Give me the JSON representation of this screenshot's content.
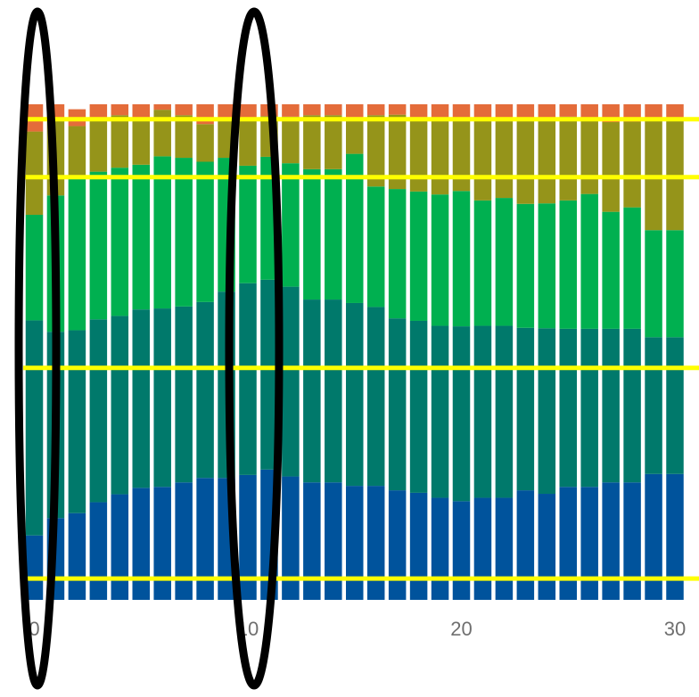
{
  "chart_data": {
    "type": "bar",
    "stacked": true,
    "normalized": true,
    "x": [
      0,
      1,
      2,
      3,
      4,
      5,
      6,
      7,
      8,
      9,
      10,
      11,
      12,
      13,
      14,
      15,
      16,
      17,
      18,
      19,
      20,
      21,
      22,
      23,
      24,
      25,
      26,
      27,
      28,
      29,
      30
    ],
    "x_ticks": [
      0,
      10,
      20,
      30
    ],
    "x_tick_labels": [
      "0",
      "10",
      "20",
      "30"
    ],
    "ylim": [
      0,
      100
    ],
    "series": [
      {
        "color": "#00539c",
        "values": [
          13.0,
          16.5,
          17.5,
          19.7,
          21.3,
          22.6,
          22.8,
          23.7,
          24.6,
          24.6,
          25.2,
          26.3,
          24.9,
          23.7,
          23.7,
          23.0,
          23.0,
          22.1,
          21.6,
          20.6,
          19.9,
          20.6,
          20.6,
          22.1,
          21.4,
          22.8,
          22.8,
          23.7,
          23.7,
          25.4,
          25.4
        ]
      },
      {
        "color": "#00796b",
        "values": [
          43.4,
          37.6,
          36.9,
          36.9,
          36.0,
          36.0,
          36.0,
          35.5,
          35.5,
          37.6,
          38.7,
          38.3,
          38.3,
          36.9,
          36.9,
          36.9,
          36.1,
          34.7,
          34.7,
          34.7,
          35.3,
          34.7,
          34.7,
          32.8,
          33.4,
          31.9,
          31.9,
          31.0,
          31.0,
          27.6,
          27.6
        ]
      },
      {
        "color": "#00b050",
        "values": [
          21.3,
          27.5,
          30.6,
          29.8,
          29.9,
          29.2,
          30.7,
          30.0,
          28.3,
          27.0,
          23.7,
          24.8,
          24.9,
          26.3,
          26.3,
          30.1,
          24.3,
          26.1,
          26.1,
          26.5,
          27.3,
          25.3,
          25.8,
          25.0,
          25.2,
          25.9,
          27.2,
          23.6,
          24.5,
          21.6,
          21.6
        ]
      },
      {
        "color": "#95941a",
        "values": [
          16.8,
          15.0,
          10.6,
          10.6,
          10.6,
          9.4,
          9.4,
          8.6,
          7.6,
          7.6,
          9.2,
          8.2,
          9.4,
          10.9,
          10.9,
          7.4,
          14.4,
          15.0,
          15.0,
          15.0,
          14.3,
          16.2,
          15.7,
          16.9,
          17.3,
          16.9,
          15.4,
          18.1,
          17.3,
          22.3,
          22.3
        ]
      },
      {
        "color": "#e46c3a",
        "values": [
          5.5,
          3.4,
          3.4,
          3.0,
          2.2,
          2.8,
          1.1,
          2.2,
          4.0,
          3.2,
          3.2,
          2.4,
          2.5,
          2.2,
          2.2,
          2.6,
          2.2,
          2.1,
          2.6,
          3.2,
          3.2,
          3.2,
          3.2,
          3.2,
          2.7,
          2.5,
          2.7,
          3.6,
          3.5,
          3.1,
          3.1
        ]
      }
    ]
  },
  "annotations": {
    "ellipse_color": "#000000",
    "highlight_line_color": "#ffff00",
    "highlight_y_values": [
      97.0,
      85.3,
      46.8,
      4.3
    ]
  }
}
